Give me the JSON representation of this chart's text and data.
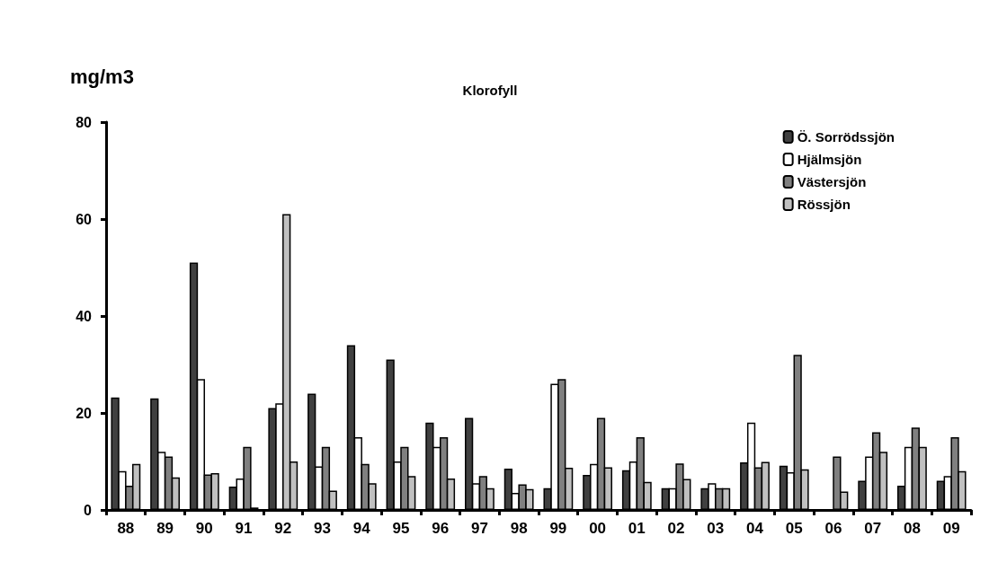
{
  "chart_data": {
    "type": "bar",
    "title": "Klorofyll",
    "ylabel": "mg/m3",
    "categories": [
      "88",
      "89",
      "90",
      "91",
      "92",
      "93",
      "94",
      "95",
      "96",
      "97",
      "98",
      "99",
      "00",
      "01",
      "02",
      "03",
      "04",
      "05",
      "06",
      "07",
      "08",
      "09"
    ],
    "series": [
      {
        "name": "Ö. Sorrödssjön",
        "color": "#404040",
        "values": [
          23.2,
          23,
          51,
          4.8,
          21,
          24,
          34,
          31,
          18,
          19,
          8.5,
          4.5,
          7.2,
          8.2,
          4.5,
          4.5,
          9.8,
          9.1,
          null,
          6,
          5,
          6
        ]
      },
      {
        "name": "Hjälmsjön",
        "color": "#ffffff",
        "values": [
          8,
          12,
          27,
          6.5,
          22,
          9,
          15,
          10,
          13,
          5.5,
          3.5,
          26,
          9.5,
          10,
          4.5,
          5.5,
          18,
          7.8,
          null,
          11,
          13,
          7
        ]
      },
      {
        "name": "Västersjön",
        "color": "#808080",
        "colors": [
          "#808080",
          "#808080",
          "#808080",
          "#808080",
          "#c0c0c0",
          "#808080",
          "#808080",
          "#808080",
          "#808080",
          "#808080",
          "#808080",
          "#808080",
          "#808080",
          "#808080",
          "#808080",
          "#808080",
          "#808080",
          "#808080",
          "#808080",
          "#808080",
          "#808080",
          "#808080"
        ],
        "values": [
          5,
          11,
          7.3,
          13,
          61,
          13,
          9.5,
          13,
          15,
          7,
          5.3,
          27,
          19,
          15,
          9.6,
          4.5,
          8.8,
          32,
          11,
          16,
          17,
          15
        ]
      },
      {
        "name": "Rössjön",
        "color": "#c0c0c0",
        "values": [
          9.5,
          6.7,
          7.6,
          0.5,
          10,
          4,
          5.5,
          7,
          6.5,
          4.5,
          4.3,
          8.7,
          8.8,
          5.8,
          6.4,
          4.5,
          9.9,
          8.4,
          3.8,
          12,
          13,
          8
        ]
      }
    ],
    "ylim": [
      0,
      80
    ],
    "yticks": [
      0,
      20,
      40,
      60,
      80
    ],
    "grid": false,
    "legend": "top right"
  }
}
